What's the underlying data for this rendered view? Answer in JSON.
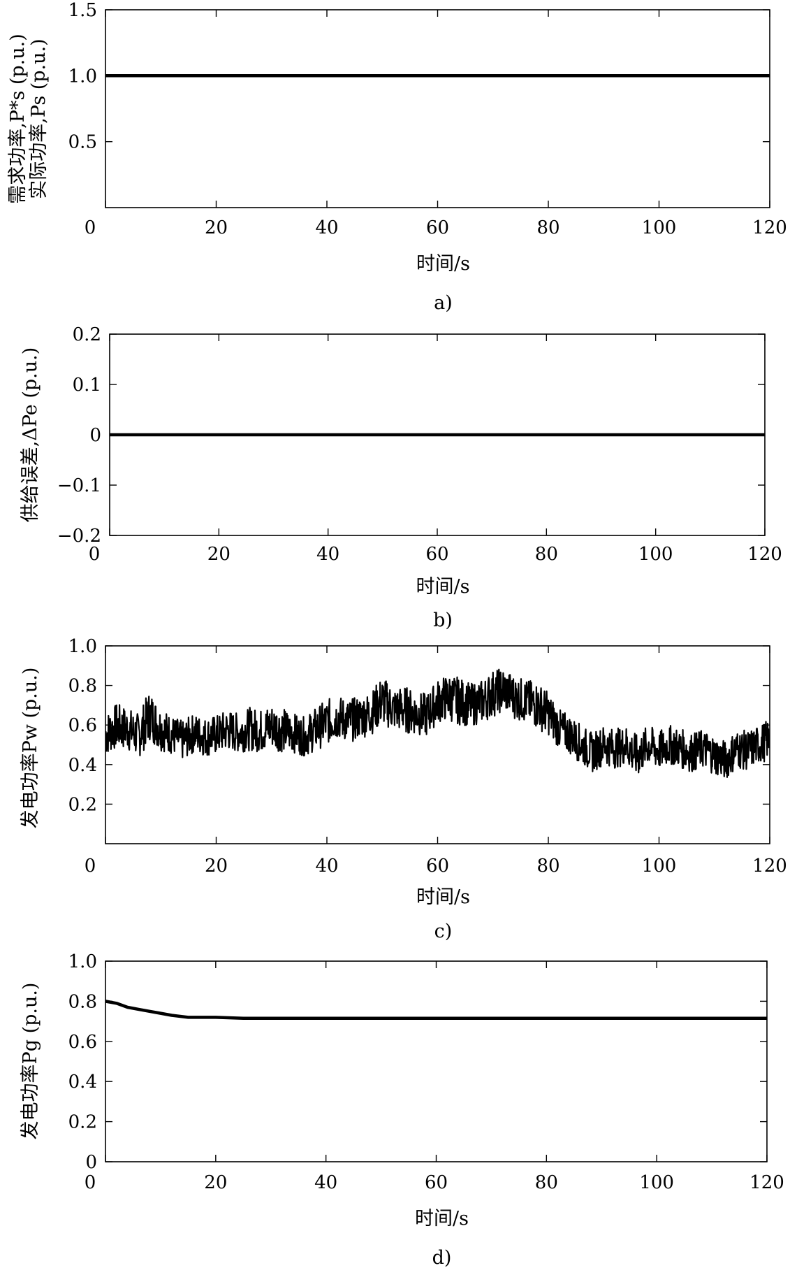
{
  "chart_data": [
    {
      "type": "line",
      "panel": "a)",
      "xlabel": "时间/s",
      "ylabel_lines": [
        "需求功率,P*s (p.u.)",
        "实际功率,Ps (p.u.)"
      ],
      "xlim": [
        0,
        120
      ],
      "ylim": [
        0,
        1.5
      ],
      "xticks": [
        "0",
        "20",
        "40",
        "60",
        "80",
        "100",
        "120"
      ],
      "yticks": [
        "0.5",
        "1.0",
        "1.5"
      ],
      "ytick_values": [
        0.5,
        1.0,
        1.5
      ],
      "series": [
        {
          "x": [
            0,
            20,
            40,
            60,
            80,
            100,
            120
          ],
          "y": [
            1.0,
            1.0,
            1.0,
            1.0,
            1.0,
            1.0,
            1.0
          ]
        }
      ]
    },
    {
      "type": "line",
      "panel": "b)",
      "xlabel": "时间/s",
      "ylabel_lines": [
        "供给误差,ΔPe (p.u.)"
      ],
      "xlim": [
        0,
        120
      ],
      "ylim": [
        -0.2,
        0.2
      ],
      "xticks": [
        "0",
        "20",
        "40",
        "60",
        "80",
        "100",
        "120"
      ],
      "yticks": [
        "−0.2",
        "−0.1",
        "0",
        "0.1",
        "0.2"
      ],
      "ytick_values": [
        -0.2,
        -0.1,
        0,
        0.1,
        0.2
      ],
      "series": [
        {
          "x": [
            0,
            20,
            40,
            60,
            80,
            100,
            120
          ],
          "y": [
            0,
            0,
            0,
            0,
            0,
            0,
            0
          ]
        }
      ]
    },
    {
      "type": "line",
      "panel": "c)",
      "xlabel": "时间/s",
      "ylabel_lines": [
        "发电功率Pw (p.u.)"
      ],
      "xlim": [
        0,
        120
      ],
      "ylim": [
        0,
        1.0
      ],
      "xticks": [
        "0",
        "20",
        "40",
        "60",
        "80",
        "100",
        "120"
      ],
      "yticks": [
        "0.2",
        "0.4",
        "0.6",
        "0.8",
        "1.0"
      ],
      "ytick_values": [
        0.2,
        0.4,
        0.6,
        0.8,
        1.0
      ],
      "series": [
        {
          "x": [
            0,
            2,
            4,
            6,
            8,
            10,
            12,
            14,
            16,
            18,
            20,
            22,
            24,
            26,
            28,
            30,
            32,
            34,
            36,
            38,
            40,
            42,
            44,
            46,
            48,
            50,
            52,
            54,
            56,
            58,
            60,
            62,
            64,
            66,
            68,
            70,
            72,
            74,
            76,
            78,
            80,
            82,
            84,
            86,
            88,
            90,
            92,
            94,
            96,
            98,
            100,
            102,
            104,
            106,
            108,
            110,
            112,
            114,
            116,
            118,
            120
          ],
          "y": [
            0.55,
            0.6,
            0.58,
            0.55,
            0.65,
            0.58,
            0.55,
            0.52,
            0.56,
            0.54,
            0.55,
            0.57,
            0.56,
            0.58,
            0.57,
            0.6,
            0.58,
            0.56,
            0.54,
            0.58,
            0.62,
            0.64,
            0.62,
            0.64,
            0.66,
            0.72,
            0.68,
            0.68,
            0.66,
            0.65,
            0.72,
            0.74,
            0.72,
            0.7,
            0.72,
            0.76,
            0.8,
            0.74,
            0.72,
            0.7,
            0.66,
            0.58,
            0.55,
            0.5,
            0.46,
            0.5,
            0.48,
            0.5,
            0.44,
            0.5,
            0.47,
            0.5,
            0.48,
            0.46,
            0.48,
            0.45,
            0.42,
            0.48,
            0.47,
            0.5,
            0.53
          ],
          "y_low": [
            0.44,
            0.48,
            0.47,
            0.43,
            0.52,
            0.47,
            0.45,
            0.42,
            0.46,
            0.44,
            0.45,
            0.47,
            0.46,
            0.47,
            0.46,
            0.48,
            0.46,
            0.46,
            0.44,
            0.47,
            0.5,
            0.53,
            0.51,
            0.53,
            0.55,
            0.6,
            0.57,
            0.56,
            0.55,
            0.54,
            0.61,
            0.62,
            0.6,
            0.59,
            0.61,
            0.64,
            0.67,
            0.63,
            0.61,
            0.58,
            0.55,
            0.48,
            0.45,
            0.4,
            0.36,
            0.4,
            0.38,
            0.4,
            0.33,
            0.4,
            0.37,
            0.4,
            0.38,
            0.36,
            0.38,
            0.35,
            0.32,
            0.38,
            0.37,
            0.4,
            0.43
          ],
          "y_high": [
            0.66,
            0.71,
            0.69,
            0.66,
            0.78,
            0.69,
            0.65,
            0.62,
            0.66,
            0.64,
            0.65,
            0.68,
            0.66,
            0.69,
            0.68,
            0.71,
            0.69,
            0.66,
            0.64,
            0.69,
            0.73,
            0.75,
            0.73,
            0.75,
            0.77,
            0.85,
            0.79,
            0.8,
            0.77,
            0.76,
            0.83,
            0.86,
            0.84,
            0.81,
            0.83,
            0.88,
            0.89,
            0.85,
            0.83,
            0.82,
            0.77,
            0.68,
            0.65,
            0.6,
            0.56,
            0.6,
            0.58,
            0.6,
            0.55,
            0.6,
            0.57,
            0.6,
            0.58,
            0.56,
            0.58,
            0.55,
            0.52,
            0.58,
            0.57,
            0.6,
            0.63
          ]
        }
      ]
    },
    {
      "type": "line",
      "panel": "d)",
      "xlabel": "时间/s",
      "ylabel_lines": [
        "发电功率Pg (p.u.)"
      ],
      "xlim": [
        0,
        120
      ],
      "ylim": [
        0,
        1.0
      ],
      "xticks": [
        "0",
        "20",
        "40",
        "60",
        "80",
        "100",
        "120"
      ],
      "yticks": [
        "0",
        "0.2",
        "0.4",
        "0.6",
        "0.8",
        "1.0"
      ],
      "ytick_values": [
        0,
        0.2,
        0.4,
        0.6,
        0.8,
        1.0
      ],
      "series": [
        {
          "x": [
            0,
            2,
            4,
            6,
            8,
            10,
            12,
            15,
            20,
            25,
            30,
            40,
            60,
            80,
            100,
            120
          ],
          "y": [
            0.8,
            0.79,
            0.77,
            0.76,
            0.75,
            0.74,
            0.73,
            0.72,
            0.72,
            0.715,
            0.715,
            0.715,
            0.715,
            0.715,
            0.715,
            0.715
          ]
        }
      ]
    }
  ]
}
